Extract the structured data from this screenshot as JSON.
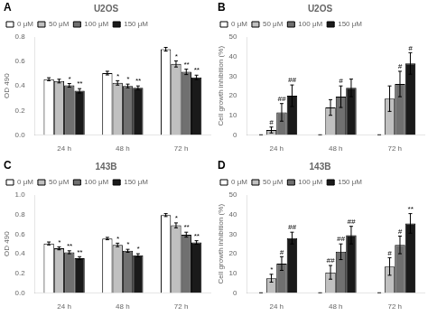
{
  "chart_data": [
    {
      "type": "bar",
      "panel_label": "A",
      "title": "U2OS",
      "ylabel": "OD 490",
      "categories": [
        "24 h",
        "48 h",
        "72 h"
      ],
      "series": [
        {
          "name": "0 μM",
          "color": "white",
          "values": [
            0.455,
            0.505,
            0.7
          ],
          "errors": [
            0.012,
            0.015,
            0.015
          ],
          "sig_labels": [
            null,
            null,
            null
          ]
        },
        {
          "name": "50 μM",
          "color": "#c0c0c0",
          "values": [
            0.44,
            0.425,
            0.58
          ],
          "errors": [
            0.015,
            0.018,
            0.025
          ],
          "sig_labels": [
            null,
            "*",
            "*"
          ]
        },
        {
          "name": "100 μM",
          "color": "#707070",
          "values": [
            0.405,
            0.4,
            0.515
          ],
          "errors": [
            0.015,
            0.015,
            0.022
          ],
          "sig_labels": [
            "*",
            "*",
            "**"
          ]
        },
        {
          "name": "150 μM",
          "color": "#1a1a1a",
          "values": [
            0.36,
            0.385,
            0.47
          ],
          "errors": [
            0.018,
            0.015,
            0.018
          ],
          "sig_labels": [
            "**",
            "**",
            "**"
          ]
        }
      ],
      "ylim": [
        0.0,
        0.8
      ],
      "yticks": [
        {
          "value": 0.0,
          "label": "0.0"
        },
        0.2,
        0.4,
        0.6,
        0.8
      ],
      "grid": false,
      "legend": "upper left"
    },
    {
      "type": "bar",
      "panel_label": "B",
      "title": "U2OS",
      "ylabel": "Cell growth inhibition (%)",
      "categories": [
        "24 h",
        "48 h",
        "72 h"
      ],
      "series": [
        {
          "name": "0 μM",
          "color": "white",
          "values": [
            0,
            0,
            0
          ],
          "errors": [
            0,
            0,
            0
          ],
          "sig_labels": [
            null,
            null,
            null
          ]
        },
        {
          "name": "50 μM",
          "color": "#c0c0c0",
          "values": [
            2.5,
            14.0,
            18.5
          ],
          "errors": [
            1.5,
            4.0,
            6.5
          ],
          "sig_labels": [
            "#",
            null,
            null
          ]
        },
        {
          "name": "100 μM",
          "color": "#707070",
          "values": [
            11.5,
            19.5,
            26.0
          ],
          "errors": [
            4.5,
            5.5,
            6.5
          ],
          "sig_labels": [
            "##",
            "#",
            "#"
          ]
        },
        {
          "name": "150 μM",
          "color": "#1a1a1a",
          "values": [
            20.0,
            24.0,
            36.5
          ],
          "errors": [
            5.5,
            4.5,
            5.5
          ],
          "sig_labels": [
            "##",
            null,
            "#"
          ]
        }
      ],
      "ylim": [
        0,
        50
      ],
      "yticks": [
        0,
        10,
        20,
        30,
        40,
        50
      ],
      "grid": false,
      "legend": "upper left"
    },
    {
      "type": "bar",
      "panel_label": "C",
      "title": "143B",
      "ylabel": "OD 490",
      "categories": [
        "24 h",
        "48 h",
        "72 h"
      ],
      "series": [
        {
          "name": "0 μM",
          "color": "white",
          "values": [
            0.505,
            0.555,
            0.795
          ],
          "errors": [
            0.015,
            0.012,
            0.015
          ],
          "sig_labels": [
            null,
            null,
            null
          ]
        },
        {
          "name": "50 μM",
          "color": "#c0c0c0",
          "values": [
            0.455,
            0.49,
            0.69
          ],
          "errors": [
            0.015,
            0.018,
            0.025
          ],
          "sig_labels": [
            "*",
            "*",
            "*"
          ]
        },
        {
          "name": "100 μM",
          "color": "#707070",
          "values": [
            0.415,
            0.43,
            0.595
          ],
          "errors": [
            0.015,
            0.015,
            0.025
          ],
          "sig_labels": [
            "**",
            "*",
            "**"
          ]
        },
        {
          "name": "150 μM",
          "color": "#1a1a1a",
          "values": [
            0.355,
            0.385,
            0.515
          ],
          "errors": [
            0.015,
            0.015,
            0.018
          ],
          "sig_labels": [
            "**",
            "*",
            "**"
          ]
        }
      ],
      "ylim": [
        0.0,
        1.0
      ],
      "yticks": [
        {
          "value": 0.0,
          "label": "0.0"
        },
        0.2,
        0.4,
        0.6,
        0.8,
        {
          "value": 1.0,
          "label": "1.0"
        }
      ],
      "grid": false,
      "legend": "upper left"
    },
    {
      "type": "bar",
      "panel_label": "D",
      "title": "143B",
      "ylabel": "Cell growth inhibition (%)",
      "categories": [
        "24 h",
        "48 h",
        "72 h"
      ],
      "series": [
        {
          "name": "0 μM",
          "color": "white",
          "values": [
            0,
            0,
            0
          ],
          "errors": [
            0,
            0,
            0
          ],
          "sig_labels": [
            null,
            null,
            null
          ]
        },
        {
          "name": "50 μM",
          "color": "#c0c0c0",
          "values": [
            7.5,
            10.5,
            13.5
          ],
          "errors": [
            2.0,
            3.5,
            4.5
          ],
          "sig_labels": [
            "*",
            "##",
            "#"
          ]
        },
        {
          "name": "100 μM",
          "color": "#707070",
          "values": [
            15.0,
            21.0,
            24.5
          ],
          "errors": [
            3.5,
            4.0,
            4.5
          ],
          "sig_labels": [
            "#",
            "##",
            "#"
          ]
        },
        {
          "name": "150 μM",
          "color": "#1a1a1a",
          "values": [
            28.0,
            29.5,
            35.5
          ],
          "errors": [
            3.0,
            4.5,
            5.0
          ],
          "sig_labels": [
            "##",
            "##",
            "**"
          ]
        }
      ],
      "ylim": [
        0,
        50
      ],
      "yticks": [
        0,
        10,
        20,
        30,
        40,
        50
      ],
      "grid": false,
      "legend": "upper left"
    }
  ]
}
